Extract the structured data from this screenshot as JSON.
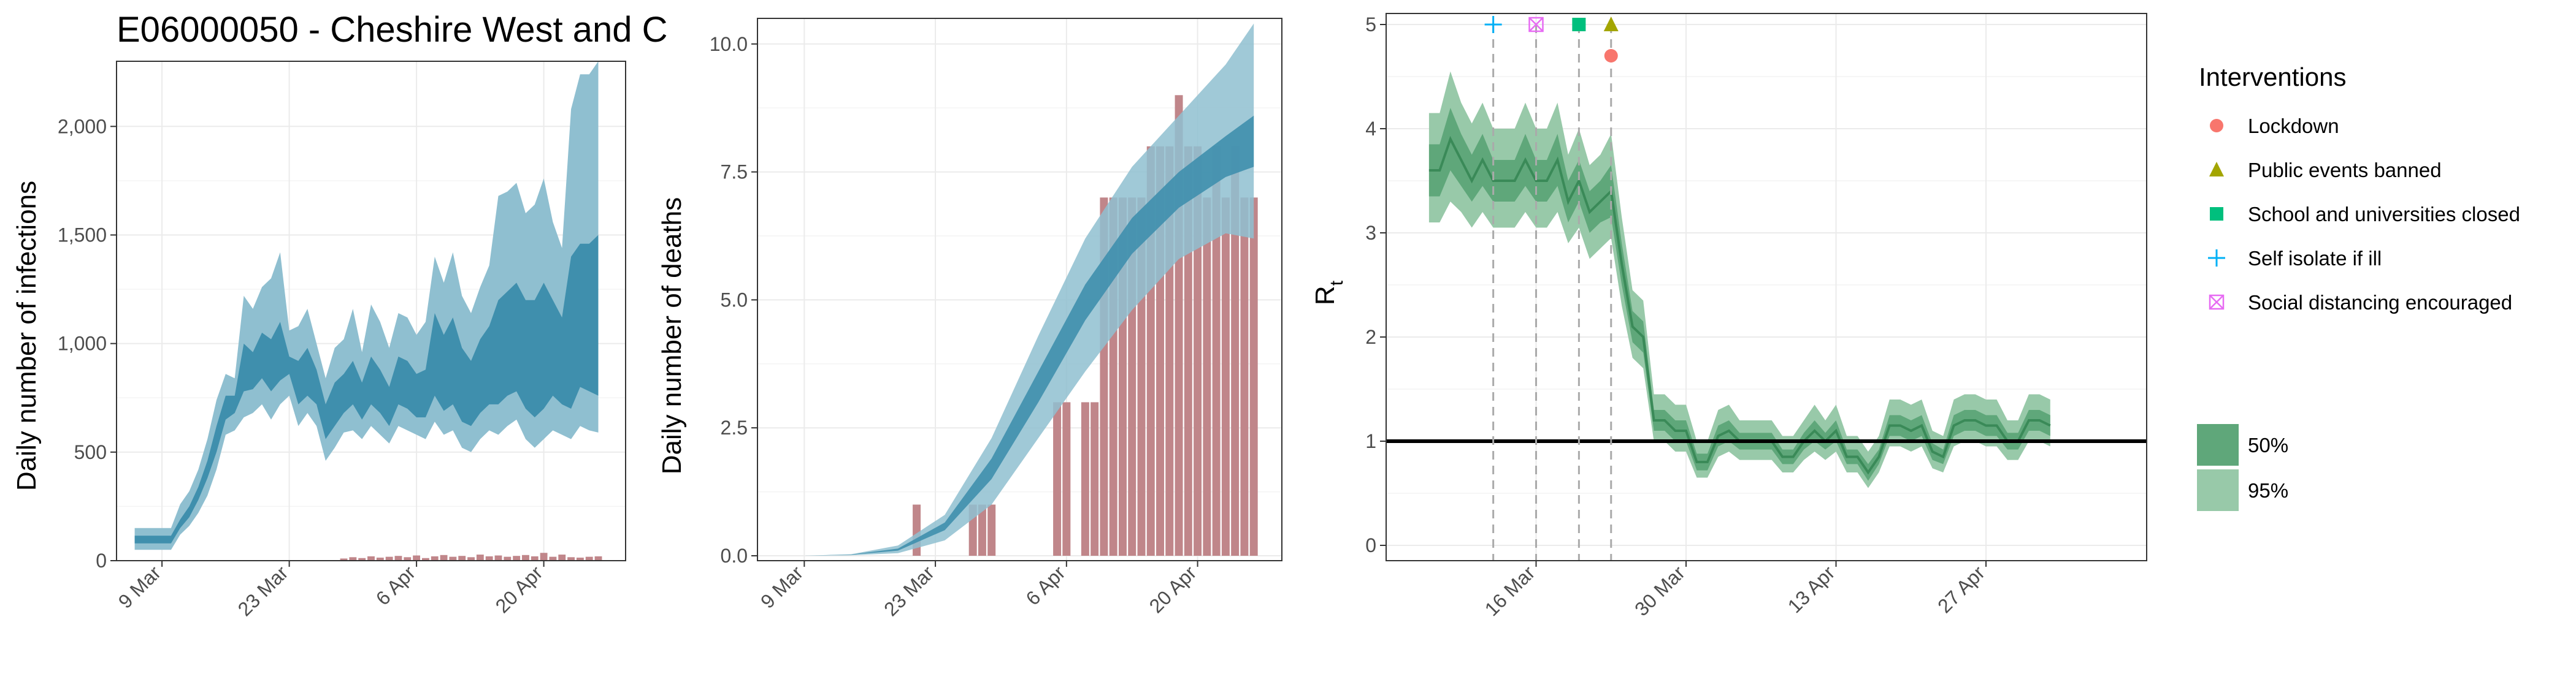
{
  "chart_data": [
    {
      "type": "area",
      "title": "E06000050 - Cheshire West and C",
      "ylabel": "Daily number of infections",
      "ylim": [
        0,
        2300
      ],
      "yticks": [
        0,
        500,
        1000,
        1500,
        2000
      ],
      "ytick_labels": [
        "0",
        "500",
        "1,000",
        "1,500",
        "2,000"
      ],
      "xlim_day": [
        -5,
        51
      ],
      "xticks": [
        {
          "day": 0,
          "label": "9 Mar"
        },
        {
          "day": 14,
          "label": "23 Mar"
        },
        {
          "day": 28,
          "label": "6 Apr"
        },
        {
          "day": 42,
          "label": "20 Apr"
        }
      ],
      "start_label": "2020-03-06",
      "band95_lower": [
        50,
        50,
        50,
        50,
        50,
        120,
        160,
        220,
        300,
        420,
        580,
        600,
        660,
        680,
        720,
        650,
        720,
        760,
        620,
        680,
        620,
        460,
        520,
        590,
        600,
        560,
        620,
        580,
        540,
        620,
        600,
        580,
        560,
        640,
        580,
        600,
        520,
        500,
        560,
        600,
        580,
        620,
        650,
        560,
        520,
        560,
        600,
        580,
        560,
        620,
        600,
        590
      ],
      "band95_upper": [
        150,
        150,
        150,
        150,
        150,
        260,
        320,
        420,
        560,
        740,
        860,
        840,
        1220,
        1160,
        1260,
        1300,
        1420,
        1060,
        1080,
        1160,
        1000,
        840,
        980,
        1020,
        1160,
        960,
        1180,
        1100,
        980,
        1140,
        1120,
        1040,
        1100,
        1400,
        1280,
        1420,
        1220,
        1140,
        1260,
        1360,
        1680,
        1700,
        1740,
        1600,
        1640,
        1760,
        1560,
        1440,
        2080,
        2240,
        2240,
        2300
      ],
      "band50_lower": [
        80,
        80,
        80,
        80,
        80,
        150,
        200,
        280,
        380,
        500,
        650,
        680,
        780,
        790,
        840,
        780,
        830,
        860,
        720,
        760,
        720,
        560,
        620,
        680,
        720,
        650,
        720,
        680,
        620,
        720,
        700,
        660,
        660,
        760,
        690,
        720,
        640,
        620,
        680,
        720,
        720,
        760,
        780,
        700,
        660,
        700,
        760,
        720,
        700,
        800,
        780,
        760
      ],
      "band50_upper": [
        115,
        115,
        115,
        115,
        115,
        190,
        250,
        340,
        460,
        620,
        760,
        760,
        1000,
        960,
        1050,
        1020,
        1100,
        940,
        920,
        980,
        880,
        720,
        820,
        860,
        920,
        820,
        940,
        880,
        800,
        940,
        920,
        860,
        880,
        1140,
        1040,
        1120,
        980,
        920,
        1020,
        1080,
        1200,
        1240,
        1280,
        1200,
        1200,
        1280,
        1200,
        1120,
        1400,
        1460,
        1460,
        1500
      ],
      "observed_cases": [
        0,
        0,
        0,
        0,
        0,
        0,
        0,
        0,
        0,
        0,
        0,
        0,
        0,
        0,
        0,
        0,
        0,
        0,
        0,
        0,
        0,
        0,
        0,
        10,
        16,
        12,
        20,
        14,
        18,
        22,
        16,
        24,
        12,
        20,
        26,
        18,
        22,
        16,
        28,
        20,
        24,
        18,
        22,
        26,
        20,
        36,
        18,
        28,
        16,
        14,
        18,
        20
      ],
      "colors": {
        "band95": "#8fbfd0",
        "band50": "#3f8fad",
        "bars": "#c0868a"
      }
    },
    {
      "type": "area",
      "ylabel": "Daily number of deaths",
      "ylim": [
        0,
        10.5
      ],
      "yticks": [
        0.0,
        2.5,
        5.0,
        7.5,
        10.0
      ],
      "ytick_labels": [
        "0.0",
        "2.5",
        "5.0",
        "7.5",
        "10.0"
      ],
      "xlim_day": [
        -5,
        51
      ],
      "xticks": [
        {
          "day": 0,
          "label": "9 Mar"
        },
        {
          "day": 14,
          "label": "23 Mar"
        },
        {
          "day": 28,
          "label": "6 Apr"
        },
        {
          "day": 42,
          "label": "20 Apr"
        }
      ],
      "band_days": [
        0,
        5,
        10,
        15,
        20,
        25,
        30,
        35,
        40,
        45,
        48
      ],
      "band95_lower": [
        0,
        0.01,
        0.05,
        0.3,
        1.0,
        2.3,
        3.6,
        4.8,
        5.8,
        6.3,
        6.2
      ],
      "band95_upper": [
        0,
        0.03,
        0.2,
        0.8,
        2.3,
        4.3,
        6.2,
        7.6,
        8.6,
        9.6,
        10.4
      ],
      "band50_lower": [
        0,
        0.02,
        0.1,
        0.5,
        1.5,
        3.0,
        4.6,
        5.9,
        6.8,
        7.4,
        7.6
      ],
      "band50_upper": [
        0,
        0.025,
        0.14,
        0.65,
        1.9,
        3.6,
        5.3,
        6.6,
        7.5,
        8.2,
        8.6
      ],
      "observed_deaths": [
        0,
        0,
        0,
        0,
        0,
        0,
        1,
        0,
        0,
        0,
        0,
        0,
        1,
        1,
        1,
        0,
        0,
        0,
        0,
        0,
        0,
        3,
        3,
        0,
        3,
        3,
        7,
        7,
        7,
        7,
        7,
        8,
        8,
        8,
        9,
        8,
        8,
        7,
        8,
        7,
        8,
        7,
        7
      ],
      "observed_start_day": 6,
      "colors": {
        "band95": "#8fbfd0",
        "band50": "#3f8fad",
        "bars": "#c0868a"
      }
    },
    {
      "type": "area",
      "ylabel": "R",
      "ylabel_sub": "t",
      "ylim": [
        0,
        5
      ],
      "yticks": [
        0,
        1,
        2,
        3,
        4,
        5
      ],
      "ytick_labels": [
        "0",
        "1",
        "2",
        "3",
        "4",
        "5"
      ],
      "xlim_day": [
        -14,
        57
      ],
      "xticks": [
        {
          "day": 0,
          "label": "16 Mar"
        },
        {
          "day": 14,
          "label": "30 Mar"
        },
        {
          "day": 28,
          "label": "13 Apr"
        },
        {
          "day": 42,
          "label": "27 Apr"
        }
      ],
      "start_day": -10,
      "median": [
        3.6,
        3.6,
        3.9,
        3.7,
        3.5,
        3.7,
        3.5,
        3.5,
        3.5,
        3.7,
        3.5,
        3.5,
        3.7,
        3.3,
        3.5,
        3.2,
        3.3,
        3.4,
        2.7,
        2.1,
        2.0,
        1.2,
        1.2,
        1.1,
        1.1,
        0.8,
        0.8,
        1.05,
        1.1,
        1.0,
        1.0,
        1.0,
        1.0,
        0.85,
        0.85,
        1.0,
        1.1,
        1.0,
        1.1,
        0.85,
        0.85,
        0.7,
        0.85,
        1.15,
        1.15,
        1.1,
        1.15,
        0.9,
        0.85,
        1.15,
        1.2,
        1.2,
        1.15,
        1.15,
        1.0,
        1.0,
        1.2,
        1.2,
        1.15
      ],
      "band50_lower": [
        3.35,
        3.35,
        3.6,
        3.45,
        3.3,
        3.45,
        3.3,
        3.3,
        3.3,
        3.45,
        3.3,
        3.3,
        3.45,
        3.1,
        3.3,
        3.0,
        3.1,
        3.15,
        2.5,
        1.95,
        1.85,
        1.1,
        1.1,
        1.0,
        1.0,
        0.72,
        0.72,
        0.95,
        1.0,
        0.92,
        0.92,
        0.92,
        0.92,
        0.78,
        0.78,
        0.92,
        1.0,
        0.92,
        1.0,
        0.78,
        0.78,
        0.62,
        0.78,
        1.05,
        1.05,
        1.0,
        1.05,
        0.82,
        0.78,
        1.05,
        1.1,
        1.1,
        1.05,
        1.05,
        0.92,
        0.92,
        1.1,
        1.1,
        1.05
      ],
      "band50_upper": [
        3.85,
        3.85,
        4.2,
        3.95,
        3.75,
        3.95,
        3.7,
        3.7,
        3.7,
        3.95,
        3.7,
        3.7,
        3.95,
        3.5,
        3.7,
        3.4,
        3.5,
        3.65,
        2.9,
        2.25,
        2.15,
        1.3,
        1.3,
        1.2,
        1.2,
        0.88,
        0.88,
        1.15,
        1.2,
        1.08,
        1.08,
        1.08,
        1.08,
        0.92,
        0.92,
        1.08,
        1.2,
        1.08,
        1.2,
        0.92,
        0.92,
        0.78,
        0.92,
        1.25,
        1.25,
        1.2,
        1.25,
        0.98,
        0.92,
        1.25,
        1.3,
        1.3,
        1.25,
        1.25,
        1.08,
        1.08,
        1.3,
        1.3,
        1.25
      ],
      "band95_lower": [
        3.1,
        3.1,
        3.3,
        3.2,
        3.05,
        3.2,
        3.05,
        3.05,
        3.05,
        3.2,
        3.05,
        3.05,
        3.2,
        2.9,
        3.05,
        2.75,
        2.85,
        2.95,
        2.3,
        1.8,
        1.7,
        1.0,
        1.0,
        0.9,
        0.9,
        0.65,
        0.65,
        0.85,
        0.9,
        0.82,
        0.82,
        0.82,
        0.82,
        0.7,
        0.7,
        0.82,
        0.9,
        0.82,
        0.9,
        0.7,
        0.7,
        0.55,
        0.7,
        0.95,
        0.95,
        0.9,
        0.95,
        0.74,
        0.7,
        0.95,
        1.0,
        1.0,
        0.95,
        0.95,
        0.82,
        0.82,
        1.0,
        1.0,
        0.95
      ],
      "band95_upper": [
        4.15,
        4.15,
        4.55,
        4.25,
        4.05,
        4.25,
        4.0,
        4.0,
        4.0,
        4.25,
        4.0,
        4.0,
        4.25,
        3.75,
        4.0,
        3.65,
        3.75,
        3.95,
        3.15,
        2.45,
        2.35,
        1.45,
        1.45,
        1.35,
        1.35,
        1.0,
        1.0,
        1.3,
        1.35,
        1.2,
        1.2,
        1.2,
        1.2,
        1.05,
        1.05,
        1.2,
        1.35,
        1.2,
        1.35,
        1.05,
        1.05,
        0.9,
        1.05,
        1.4,
        1.4,
        1.35,
        1.4,
        1.1,
        1.05,
        1.4,
        1.45,
        1.45,
        1.4,
        1.4,
        1.2,
        1.2,
        1.45,
        1.45,
        1.4
      ],
      "reference_line": 1,
      "interventions": [
        {
          "name": "Lockdown",
          "day": 7,
          "value": 4.7,
          "marker": "circle",
          "color": "#f8766d"
        },
        {
          "name": "Public events banned",
          "day": 7,
          "value": 5.0,
          "marker": "triangle",
          "color": "#a3a500"
        },
        {
          "name": "School and universities closed",
          "day": 4,
          "value": 5.0,
          "marker": "square",
          "color": "#00bf7d"
        },
        {
          "name": "Self isolate if ill",
          "day": -4,
          "value": 5.0,
          "marker": "plus",
          "color": "#00b0f6"
        },
        {
          "name": "Social distancing encouraged",
          "day": 0,
          "value": 5.0,
          "marker": "boxcross",
          "color": "#e76bf3"
        }
      ],
      "colors": {
        "band95": "#98c9a9",
        "band50": "#5fa77a",
        "median": "#3a8a58"
      }
    }
  ],
  "legend": {
    "title": "Interventions",
    "placement": "right",
    "items": [
      "Lockdown",
      "Public events banned",
      "School and universities closed",
      "Self isolate if ill",
      "Social distancing encouraged"
    ],
    "ci_items": [
      {
        "label": "50%",
        "color": "#5fa77a"
      },
      {
        "label": "95%",
        "color": "#98c9a9"
      }
    ]
  }
}
